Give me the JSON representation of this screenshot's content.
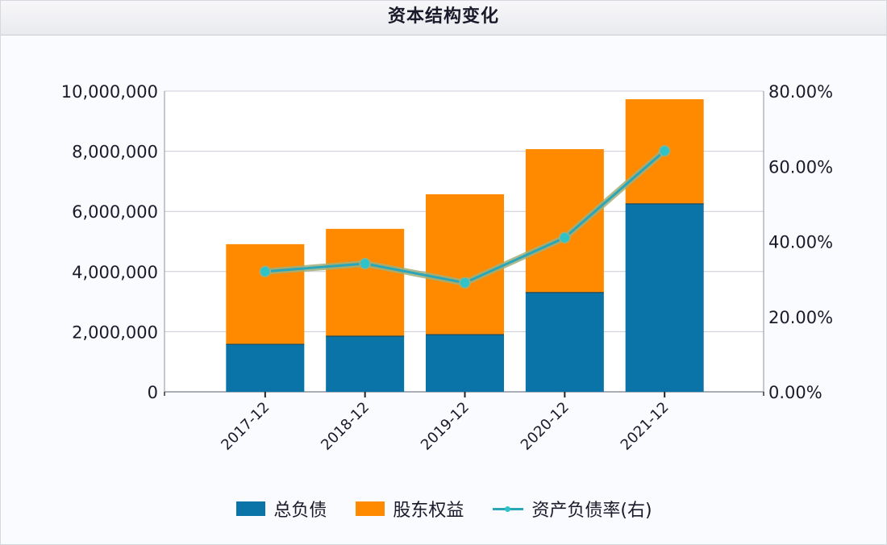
{
  "title": "资本结构变化",
  "colors": {
    "liabilities": "#0a73a8",
    "equity": "#ff8a00",
    "ratio_line": "#2aa6b8",
    "ratio_marker": "#2fc2c9",
    "ratio_glow": "#9fae7a",
    "grid": "#c9ccd4",
    "axis": "#8d93a0"
  },
  "legend": {
    "items": [
      {
        "label": "总负债",
        "type": "bar",
        "color_key": "liabilities"
      },
      {
        "label": "股东权益",
        "type": "bar",
        "color_key": "equity"
      },
      {
        "label": "资产负债率(右)",
        "type": "line",
        "color_key": "ratio_line"
      }
    ]
  },
  "axes": {
    "left_ticks": [
      "0",
      "2,000,000",
      "4,000,000",
      "6,000,000",
      "8,000,000",
      "10,000,000"
    ],
    "right_ticks": [
      "0.00%",
      "20.00%",
      "40.00%",
      "60.00%",
      "80.00%"
    ]
  },
  "chart_data": {
    "type": "bar",
    "subtype": "stacked bar with line on secondary axis",
    "title": "资本结构变化",
    "categories": [
      "2017-12",
      "2018-12",
      "2019-12",
      "2020-12",
      "2021-12"
    ],
    "series": [
      {
        "name": "总负债",
        "type": "bar",
        "stack": "total",
        "axis": "left",
        "values": [
          1580000,
          1850000,
          1900000,
          3300000,
          6250000
        ]
      },
      {
        "name": "股东权益",
        "type": "bar",
        "stack": "total",
        "axis": "left",
        "values": [
          3330000,
          3570000,
          4670000,
          4770000,
          3480000
        ]
      },
      {
        "name": "资产负债率(右)",
        "type": "line",
        "axis": "right",
        "unit": "%",
        "values": [
          32.0,
          34.1,
          29.0,
          41.0,
          64.1
        ]
      }
    ],
    "stack_totals": [
      4910000,
      5420000,
      6570000,
      8070000,
      9730000
    ],
    "xlabel": "",
    "ylabel": "",
    "ylim": [
      0,
      10000000
    ],
    "y2lim": [
      0,
      80
    ],
    "y_ticks": [
      0,
      2000000,
      4000000,
      6000000,
      8000000,
      10000000
    ],
    "y2_ticks": [
      0,
      20,
      40,
      60,
      80
    ],
    "x_tick_rotation": -45,
    "grid": true,
    "legend_position": "bottom"
  }
}
